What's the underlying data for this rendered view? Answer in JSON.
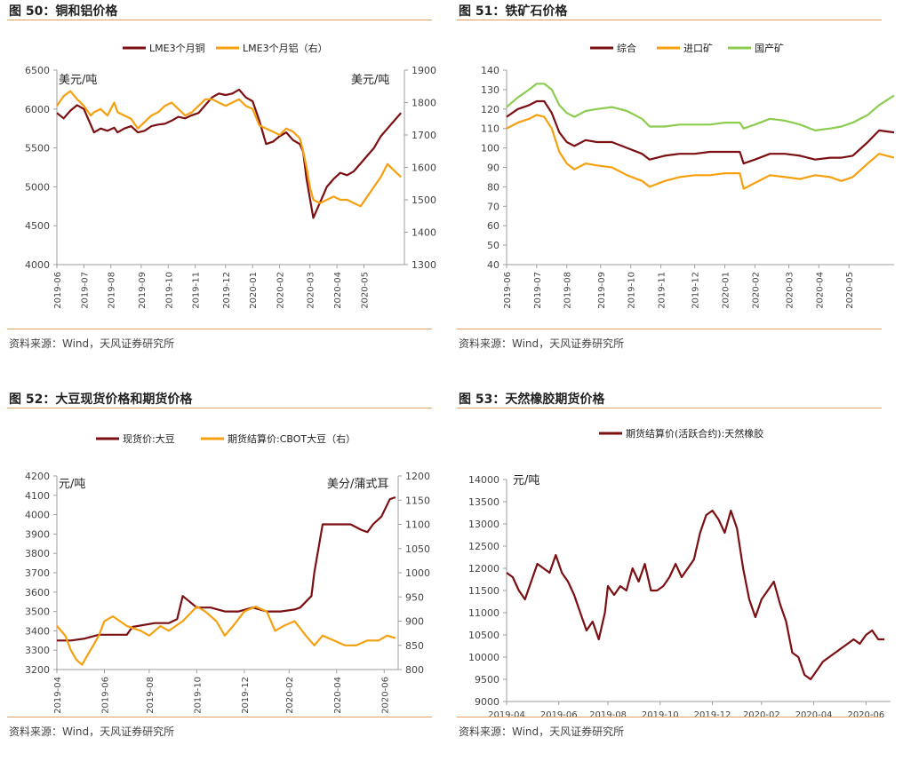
{
  "source_text": "资料来源：Wind，天风证券研究所",
  "colors": {
    "dark_red": "#7b0f12",
    "orange": "#f5a00f",
    "green": "#8ccc50",
    "axis": "#9e9e9e",
    "rule": "#e0a060"
  },
  "chart_data": [
    {
      "id": "fig50",
      "type": "line",
      "title": "图 50：铜和铝价格",
      "unit_left": "美元/吨",
      "unit_right": "美元/吨",
      "ylim": [
        4000,
        6500
      ],
      "yticks": [
        4000,
        4500,
        5000,
        5500,
        6000,
        6500
      ],
      "y2lim": [
        1300,
        1900
      ],
      "y2ticks": [
        1300,
        1400,
        1500,
        1600,
        1700,
        1800,
        1900
      ],
      "x_range": [
        2019.42,
        2020.45
      ],
      "x_tick_labels": [
        "2019-06",
        "2019-07",
        "2019-08",
        "2019-09",
        "2019-10",
        "2019-11",
        "2019-12",
        "2020-01",
        "2020-02",
        "2020-03",
        "2020-04",
        "2020-05"
      ],
      "x_tick_positions": [
        2019.42,
        2019.5,
        2019.58,
        2019.67,
        2019.75,
        2019.83,
        2019.92,
        2020.0,
        2020.08,
        2020.17,
        2020.25,
        2020.33
      ],
      "series": [
        {
          "name": "LME3个月铜",
          "color": "#7b0f12",
          "axis": "left",
          "x": [
            2019.42,
            2019.44,
            2019.46,
            2019.48,
            2019.5,
            2019.52,
            2019.53,
            2019.55,
            2019.57,
            2019.59,
            2019.6,
            2019.62,
            2019.64,
            2019.66,
            2019.68,
            2019.7,
            2019.72,
            2019.74,
            2019.76,
            2019.78,
            2019.8,
            2019.82,
            2019.84,
            2019.86,
            2019.88,
            2019.9,
            2019.92,
            2019.94,
            2019.96,
            2019.98,
            2020.0,
            2020.02,
            2020.04,
            2020.06,
            2020.08,
            2020.1,
            2020.12,
            2020.14,
            2020.15,
            2020.16,
            2020.17,
            2020.18,
            2020.2,
            2020.22,
            2020.24,
            2020.26,
            2020.28,
            2020.3,
            2020.32,
            2020.34,
            2020.36,
            2020.38,
            2020.4,
            2020.42,
            2020.44
          ],
          "values": [
            5950,
            5880,
            5980,
            6050,
            6000,
            5800,
            5700,
            5750,
            5720,
            5760,
            5700,
            5750,
            5780,
            5700,
            5720,
            5780,
            5800,
            5810,
            5850,
            5900,
            5880,
            5920,
            5950,
            6050,
            6150,
            6200,
            6180,
            6200,
            6250,
            6150,
            6100,
            5850,
            5550,
            5580,
            5650,
            5700,
            5600,
            5550,
            5450,
            5100,
            4850,
            4600,
            4800,
            5000,
            5100,
            5180,
            5150,
            5200,
            5300,
            5400,
            5500,
            5650,
            5750,
            5850,
            5950
          ]
        },
        {
          "name": "LME3个月铝（右）",
          "color": "#f5a00f",
          "axis": "right",
          "x": [
            2019.42,
            2019.44,
            2019.46,
            2019.48,
            2019.5,
            2019.52,
            2019.53,
            2019.55,
            2019.57,
            2019.59,
            2019.6,
            2019.62,
            2019.64,
            2019.66,
            2019.68,
            2019.7,
            2019.72,
            2019.74,
            2019.76,
            2019.78,
            2019.8,
            2019.82,
            2019.84,
            2019.86,
            2019.88,
            2019.9,
            2019.92,
            2019.94,
            2019.96,
            2019.98,
            2020.0,
            2020.02,
            2020.04,
            2020.06,
            2020.08,
            2020.1,
            2020.12,
            2020.14,
            2020.15,
            2020.16,
            2020.17,
            2020.18,
            2020.2,
            2020.22,
            2020.24,
            2020.26,
            2020.28,
            2020.3,
            2020.32,
            2020.34,
            2020.36,
            2020.38,
            2020.4,
            2020.42,
            2020.44
          ],
          "values": [
            1790,
            1820,
            1835,
            1810,
            1790,
            1760,
            1770,
            1780,
            1760,
            1800,
            1770,
            1760,
            1750,
            1720,
            1740,
            1760,
            1770,
            1790,
            1800,
            1780,
            1760,
            1770,
            1790,
            1810,
            1810,
            1800,
            1790,
            1800,
            1810,
            1790,
            1780,
            1730,
            1720,
            1710,
            1700,
            1720,
            1710,
            1690,
            1650,
            1600,
            1540,
            1500,
            1490,
            1500,
            1510,
            1500,
            1500,
            1490,
            1480,
            1510,
            1540,
            1570,
            1610,
            1590,
            1570
          ]
        }
      ]
    },
    {
      "id": "fig51",
      "type": "line",
      "title": "图 51：铁矿石价格",
      "ylim": [
        40,
        140
      ],
      "yticks": [
        40,
        50,
        60,
        70,
        80,
        90,
        100,
        110,
        120,
        130,
        140
      ],
      "x_range": [
        2019.42,
        2020.45
      ],
      "x_tick_labels": [
        "2019-06",
        "2019-07",
        "2019-08",
        "2019-09",
        "2019-10",
        "2019-11",
        "2019-12",
        "2020-01",
        "2020-02",
        "2020-03",
        "2020-04",
        "2020-05"
      ],
      "x_tick_positions": [
        2019.42,
        2019.5,
        2019.58,
        2019.67,
        2019.75,
        2019.83,
        2019.92,
        2020.0,
        2020.08,
        2020.17,
        2020.25,
        2020.33
      ],
      "series": [
        {
          "name": "综合",
          "color": "#7b0f12",
          "x": [
            2019.42,
            2019.45,
            2019.48,
            2019.5,
            2019.52,
            2019.54,
            2019.56,
            2019.58,
            2019.6,
            2019.63,
            2019.66,
            2019.7,
            2019.74,
            2019.78,
            2019.8,
            2019.84,
            2019.88,
            2019.92,
            2019.96,
            2020.0,
            2020.04,
            2020.05,
            2020.08,
            2020.12,
            2020.16,
            2020.2,
            2020.24,
            2020.28,
            2020.31,
            2020.34,
            2020.38,
            2020.41,
            2020.45
          ],
          "values": [
            116,
            120,
            122,
            124,
            124,
            118,
            108,
            103,
            101,
            104,
            103,
            103,
            100,
            97,
            94,
            96,
            97,
            97,
            98,
            98,
            98,
            92,
            94,
            97,
            97,
            96,
            94,
            95,
            95,
            96,
            103,
            109,
            108
          ]
        },
        {
          "name": "进口矿",
          "color": "#f5a00f",
          "x": [
            2019.42,
            2019.45,
            2019.48,
            2019.5,
            2019.52,
            2019.54,
            2019.56,
            2019.58,
            2019.6,
            2019.63,
            2019.66,
            2019.7,
            2019.74,
            2019.78,
            2019.8,
            2019.84,
            2019.88,
            2019.92,
            2019.96,
            2020.0,
            2020.04,
            2020.05,
            2020.08,
            2020.12,
            2020.16,
            2020.2,
            2020.24,
            2020.28,
            2020.31,
            2020.34,
            2020.38,
            2020.41,
            2020.45
          ],
          "values": [
            110,
            113,
            115,
            117,
            116,
            110,
            98,
            92,
            89,
            92,
            91,
            90,
            86,
            83,
            80,
            83,
            85,
            86,
            86,
            87,
            87,
            79,
            82,
            86,
            85,
            84,
            86,
            85,
            83,
            85,
            92,
            97,
            95
          ]
        },
        {
          "name": "国产矿",
          "color": "#8ccc50",
          "x": [
            2019.42,
            2019.45,
            2019.48,
            2019.5,
            2019.52,
            2019.54,
            2019.56,
            2019.58,
            2019.6,
            2019.63,
            2019.66,
            2019.7,
            2019.74,
            2019.78,
            2019.8,
            2019.84,
            2019.88,
            2019.92,
            2019.96,
            2020.0,
            2020.04,
            2020.05,
            2020.08,
            2020.12,
            2020.16,
            2020.2,
            2020.24,
            2020.28,
            2020.31,
            2020.34,
            2020.38,
            2020.41,
            2020.45
          ],
          "values": [
            121,
            126,
            130,
            133,
            133,
            130,
            122,
            118,
            116,
            119,
            120,
            121,
            119,
            115,
            111,
            111,
            112,
            112,
            112,
            113,
            113,
            110,
            112,
            115,
            114,
            112,
            109,
            110,
            111,
            113,
            117,
            122,
            127
          ]
        }
      ]
    },
    {
      "id": "fig52",
      "type": "line",
      "title": "图 52：大豆现货价格和期货价格",
      "unit_left": "元/吨",
      "unit_right": "美分/蒲式耳",
      "ylim": [
        3200,
        4200
      ],
      "yticks": [
        3200,
        3300,
        3400,
        3500,
        3600,
        3700,
        3800,
        3900,
        4000,
        4100,
        4200
      ],
      "y2lim": [
        800,
        1200
      ],
      "y2ticks": [
        800,
        850,
        900,
        950,
        1000,
        1050,
        1100,
        1150,
        1200
      ],
      "x_range": [
        2019.25,
        2020.47
      ],
      "x_tick_labels": [
        "2019-04",
        "2019-06",
        "2019-08",
        "2019-10",
        "2019-12",
        "2020-02",
        "2020-04",
        "2020-06"
      ],
      "x_tick_positions": [
        2019.25,
        2019.42,
        2019.58,
        2019.75,
        2019.92,
        2020.08,
        2020.25,
        2020.42
      ],
      "series": [
        {
          "name": "现货价:大豆",
          "color": "#7b0f12",
          "axis": "left",
          "x": [
            2019.25,
            2019.3,
            2019.35,
            2019.4,
            2019.42,
            2019.5,
            2019.52,
            2019.6,
            2019.65,
            2019.68,
            2019.7,
            2019.75,
            2019.8,
            2019.85,
            2019.9,
            2019.95,
            2020.0,
            2020.05,
            2020.1,
            2020.12,
            2020.14,
            2020.16,
            2020.17,
            2020.2,
            2020.25,
            2020.3,
            2020.34,
            2020.36,
            2020.38,
            2020.41,
            2020.44,
            2020.46
          ],
          "values": [
            3350,
            3350,
            3360,
            3380,
            3380,
            3380,
            3420,
            3440,
            3440,
            3460,
            3580,
            3520,
            3520,
            3500,
            3500,
            3520,
            3500,
            3500,
            3510,
            3520,
            3550,
            3580,
            3700,
            3950,
            3950,
            3950,
            3920,
            3910,
            3950,
            3990,
            4080,
            4090
          ]
        },
        {
          "name": "期货结算价:CBOT大豆（右）",
          "color": "#f5a00f",
          "axis": "right",
          "x": [
            2019.25,
            2019.28,
            2019.3,
            2019.32,
            2019.34,
            2019.36,
            2019.38,
            2019.4,
            2019.42,
            2019.45,
            2019.5,
            2019.55,
            2019.58,
            2019.62,
            2019.65,
            2019.7,
            2019.75,
            2019.78,
            2019.82,
            2019.85,
            2019.88,
            2019.92,
            2019.96,
            2020.0,
            2020.03,
            2020.06,
            2020.1,
            2020.14,
            2020.17,
            2020.2,
            2020.24,
            2020.28,
            2020.32,
            2020.36,
            2020.4,
            2020.43,
            2020.46
          ],
          "values": [
            890,
            870,
            840,
            820,
            810,
            830,
            850,
            870,
            900,
            910,
            890,
            880,
            870,
            890,
            880,
            900,
            930,
            920,
            900,
            870,
            890,
            920,
            930,
            920,
            880,
            890,
            900,
            870,
            850,
            870,
            860,
            850,
            850,
            860,
            860,
            870,
            865
          ]
        }
      ]
    },
    {
      "id": "fig53",
      "type": "line",
      "title": "图 53：天然橡胶期货价格",
      "unit_left": "元/吨",
      "ylim": [
        9000,
        14000
      ],
      "yticks": [
        9000,
        9500,
        10000,
        10500,
        11000,
        11500,
        12000,
        12500,
        13000,
        13500,
        14000
      ],
      "x_range": [
        2019.25,
        2020.5
      ],
      "x_tick_labels": [
        "2019-04",
        "2019-06",
        "2019-08",
        "2019-10",
        "2019-12",
        "2020-02",
        "2020-04",
        "2020-06"
      ],
      "x_tick_positions": [
        2019.25,
        2019.42,
        2019.58,
        2019.75,
        2019.92,
        2020.08,
        2020.25,
        2020.42
      ],
      "series": [
        {
          "name": "期货结算价(活跃合约):天然橡胶",
          "color": "#7b0f12",
          "x": [
            2019.25,
            2019.27,
            2019.29,
            2019.31,
            2019.33,
            2019.35,
            2019.37,
            2019.39,
            2019.41,
            2019.43,
            2019.45,
            2019.47,
            2019.49,
            2019.51,
            2019.53,
            2019.55,
            2019.57,
            2019.58,
            2019.6,
            2019.62,
            2019.64,
            2019.66,
            2019.68,
            2019.7,
            2019.72,
            2019.74,
            2019.76,
            2019.78,
            2019.8,
            2019.82,
            2019.84,
            2019.86,
            2019.88,
            2019.9,
            2019.92,
            2019.94,
            2019.96,
            2019.98,
            2020.0,
            2020.02,
            2020.04,
            2020.06,
            2020.08,
            2020.1,
            2020.12,
            2020.14,
            2020.16,
            2020.18,
            2020.2,
            2020.22,
            2020.24,
            2020.26,
            2020.28,
            2020.3,
            2020.32,
            2020.34,
            2020.36,
            2020.38,
            2020.4,
            2020.42,
            2020.44,
            2020.46,
            2020.48
          ],
          "values": [
            11900,
            11800,
            11500,
            11300,
            11700,
            12100,
            12000,
            11900,
            12300,
            11900,
            11700,
            11400,
            11000,
            10600,
            10800,
            10400,
            11000,
            11600,
            11400,
            11600,
            11500,
            12000,
            11700,
            12100,
            11500,
            11500,
            11600,
            11800,
            12100,
            11800,
            12000,
            12200,
            12800,
            13200,
            13300,
            13100,
            12800,
            13300,
            12900,
            12000,
            11300,
            10900,
            11300,
            11500,
            11700,
            11200,
            10800,
            10100,
            10000,
            9600,
            9500,
            9700,
            9900,
            10000,
            10100,
            10200,
            10300,
            10400,
            10300,
            10500,
            10600,
            10400,
            10400
          ]
        }
      ]
    }
  ]
}
